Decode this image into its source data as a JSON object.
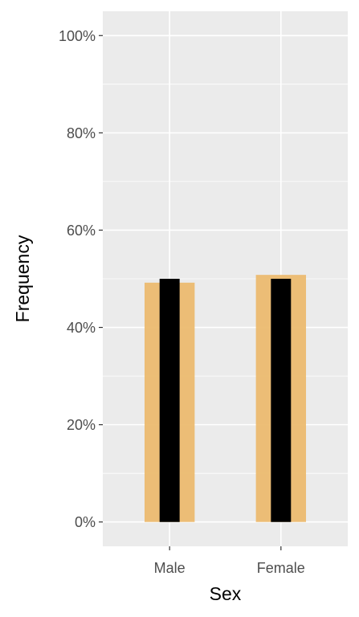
{
  "chart_data": {
    "type": "bar",
    "xlabel": "Sex",
    "ylabel": "Frequency",
    "categories": [
      "Male",
      "Female"
    ],
    "series": [
      {
        "values": [
          0.492,
          0.508
        ],
        "color": "#ebb86b",
        "role": "wide background bar"
      },
      {
        "values": [
          0.5,
          0.5
        ],
        "color": "#000000",
        "role": "narrow foreground bar"
      }
    ],
    "ylim": [
      -0.05,
      1.05
    ],
    "y_ticks": [
      0,
      0.2,
      0.4,
      0.6,
      0.8,
      1.0
    ],
    "y_tick_labels": [
      "0%",
      "20%",
      "40%",
      "60%",
      "80%",
      "100%"
    ],
    "grid": true,
    "panel_background": "#ebebeb",
    "grid_color": "#ffffff"
  }
}
